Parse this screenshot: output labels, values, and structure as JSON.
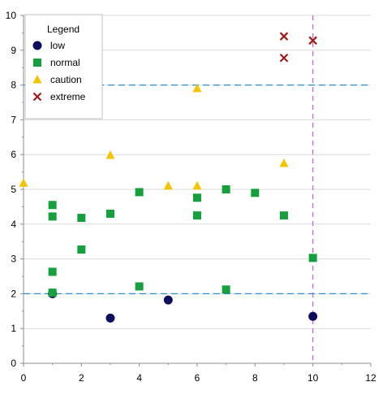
{
  "chart_data": {
    "type": "scatter",
    "xlim": [
      0,
      12
    ],
    "ylim": [
      0,
      10
    ],
    "x_ticks": [
      0,
      2,
      4,
      6,
      8,
      10,
      12
    ],
    "y_ticks": [
      0,
      1,
      2,
      3,
      4,
      5,
      6,
      7,
      8,
      9,
      10
    ],
    "grid": "horizontal major gridlines",
    "legend": {
      "title": "Legend",
      "placement": "top-left"
    },
    "series": [
      {
        "name": "low",
        "marker": "circle",
        "color": "#0d0d5e",
        "points": [
          [
            1,
            2.0
          ],
          [
            3,
            1.3
          ],
          [
            5,
            1.82
          ],
          [
            10,
            1.35
          ]
        ]
      },
      {
        "name": "normal",
        "marker": "square",
        "color": "#15a03d",
        "points": [
          [
            1,
            2.03
          ],
          [
            1,
            2.63
          ],
          [
            1,
            4.22
          ],
          [
            1,
            4.55
          ],
          [
            2,
            3.27
          ],
          [
            2,
            4.18
          ],
          [
            3,
            4.3
          ],
          [
            4,
            2.21
          ],
          [
            4,
            4.92
          ],
          [
            6,
            4.25
          ],
          [
            6,
            4.76
          ],
          [
            7,
            2.12
          ],
          [
            7,
            5.0
          ],
          [
            8,
            4.9
          ],
          [
            9,
            4.25
          ],
          [
            10,
            3.03
          ]
        ]
      },
      {
        "name": "caution",
        "marker": "triangle",
        "color": "#f5c400",
        "points": [
          [
            0,
            5.18
          ],
          [
            3,
            5.98
          ],
          [
            5,
            5.1
          ],
          [
            6,
            5.1
          ],
          [
            6,
            7.9
          ],
          [
            9,
            5.75
          ]
        ]
      },
      {
        "name": "extreme",
        "marker": "x",
        "color": "#a11a1a",
        "points": [
          [
            9,
            9.4
          ],
          [
            9,
            8.78
          ],
          [
            10,
            9.28
          ]
        ]
      }
    ],
    "reference_lines": [
      {
        "orientation": "horizontal",
        "value": 2,
        "color": "#2e8fc4",
        "style": "dashed"
      },
      {
        "orientation": "horizontal",
        "value": 8,
        "color": "#2e8fc4",
        "style": "dashed"
      },
      {
        "orientation": "vertical",
        "value": 10,
        "color": "#c060d8",
        "style": "dashed"
      }
    ],
    "colors": {
      "grid": "#d9d9d9",
      "axis": "#8c8c8c",
      "legend_border": "#bfbfbf"
    }
  }
}
